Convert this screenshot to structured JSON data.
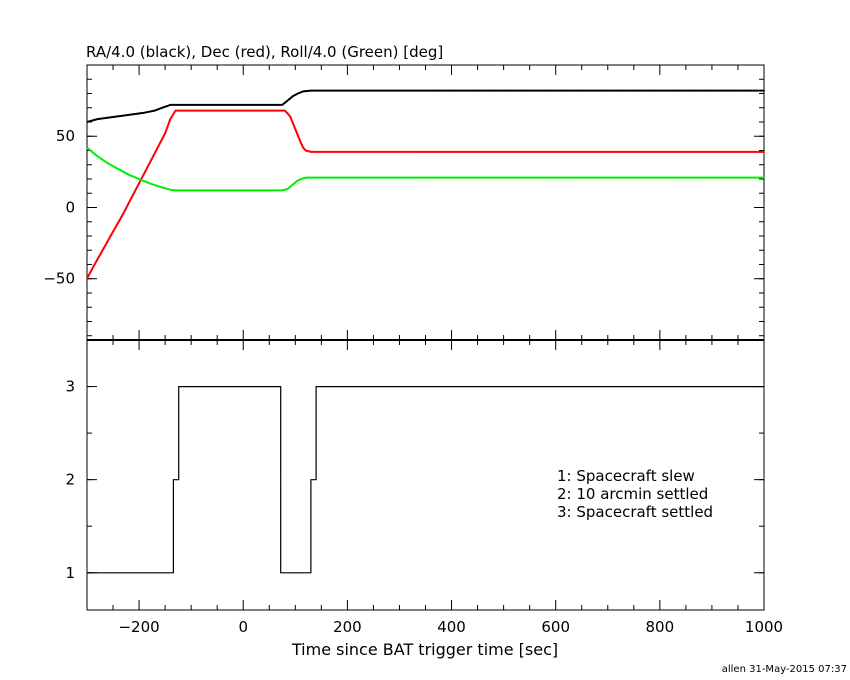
{
  "chart_data": [
    {
      "type": "line",
      "title": "RA/4.0 (black), Dec (red), Roll/4.0 (Green) [deg]",
      "xlim": [
        -300,
        1000
      ],
      "ylim": [
        -93,
        100
      ],
      "yticks": [
        -50,
        0,
        50
      ],
      "grid": false,
      "series": [
        {
          "color": "#000000",
          "x": [
            -300,
            -280,
            -250,
            -220,
            -190,
            -170,
            -155,
            -140,
            -125,
            0,
            75,
            85,
            95,
            105,
            115,
            130,
            200,
            340,
            1000
          ],
          "y": [
            60,
            62,
            63.5,
            65,
            66.5,
            68,
            70,
            72,
            72,
            72,
            72,
            75,
            78,
            80,
            81.5,
            82,
            82,
            82,
            82
          ]
        },
        {
          "color": "#ff0000",
          "x": [
            -300,
            -290,
            -270,
            -250,
            -230,
            -210,
            -190,
            -170,
            -150,
            -140,
            -130,
            0,
            80,
            90,
            100,
            110,
            115,
            120,
            125,
            130,
            200,
            340,
            1000
          ],
          "y": [
            -50,
            -43,
            -30,
            -17,
            -4,
            10,
            24,
            38,
            52,
            62,
            68,
            68,
            68,
            64,
            55,
            46,
            42,
            40,
            39.5,
            39,
            39,
            39,
            39
          ]
        },
        {
          "color": "#00ee00",
          "x": [
            -300,
            -280,
            -260,
            -240,
            -220,
            -200,
            -180,
            -160,
            -140,
            -130,
            0,
            75,
            85,
            95,
            105,
            115,
            120,
            130,
            200,
            340,
            1000
          ],
          "y": [
            42,
            36,
            31,
            27,
            23,
            20,
            17,
            14.5,
            12.5,
            12,
            12,
            12,
            13,
            16,
            19,
            20.5,
            21,
            21,
            21,
            21,
            21
          ]
        }
      ]
    },
    {
      "type": "line",
      "xlabel": "Time since BAT trigger time [sec]",
      "xlim": [
        -300,
        1000
      ],
      "ylim": [
        0.6,
        3.5
      ],
      "yticks": [
        1,
        2,
        3
      ],
      "xticks": [
        -200,
        0,
        200,
        400,
        600,
        800,
        1000
      ],
      "grid": false,
      "series": [
        {
          "color": "#000000",
          "step": true,
          "x": [
            -300,
            -134,
            -134,
            -124,
            -124,
            72,
            72,
            130,
            130,
            140,
            140,
            1000
          ],
          "y": [
            1,
            1,
            2,
            2,
            3,
            3,
            1,
            1,
            2,
            2,
            3,
            3
          ]
        }
      ],
      "legend": [
        "1: Spacecraft slew",
        "2: 10 arcmin settled",
        "3: Spacecraft settled"
      ]
    }
  ],
  "footer": "allen 31-May-2015 07:37"
}
